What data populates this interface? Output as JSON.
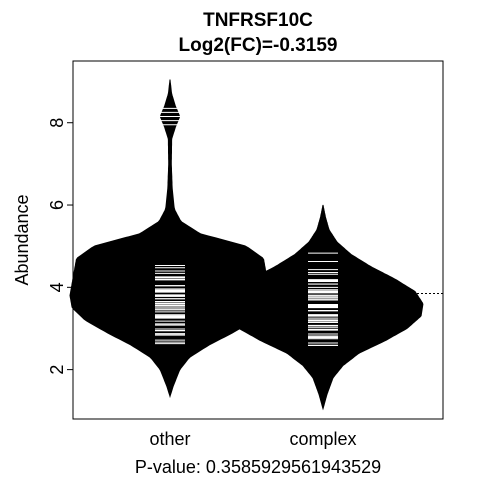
{
  "chart_data": {
    "type": "beanplot",
    "title": "TNFRSF10C",
    "subtitle": "Log2(FC)=-0.3159",
    "ylabel": "Abundance",
    "xlabel": "P-value: 0.3585929561943529",
    "categories": [
      "other",
      "complex"
    ],
    "ylim": [
      0.8,
      9.5
    ],
    "yticks": [
      2,
      4,
      6,
      8
    ],
    "overall_mean": 3.85,
    "grid": false,
    "legend": "none",
    "groups": [
      {
        "name": "other",
        "mean": 4.0,
        "range": [
          1.35,
          9.05
        ],
        "lines_range": [
          2.25,
          5.05
        ],
        "outliers": [
          7.95,
          8.05,
          8.15,
          8.25,
          8.35
        ],
        "density": [
          [
            1.35,
            0.0
          ],
          [
            1.6,
            0.03
          ],
          [
            2.0,
            0.09
          ],
          [
            2.3,
            0.18
          ],
          [
            2.6,
            0.36
          ],
          [
            2.9,
            0.58
          ],
          [
            3.2,
            0.78
          ],
          [
            3.5,
            0.9
          ],
          [
            3.8,
            0.92
          ],
          [
            4.1,
            0.9
          ],
          [
            4.4,
            0.88
          ],
          [
            4.7,
            0.86
          ],
          [
            5.0,
            0.7
          ],
          [
            5.3,
            0.28
          ],
          [
            5.6,
            0.1
          ],
          [
            5.9,
            0.04
          ],
          [
            6.4,
            0.02
          ],
          [
            7.0,
            0.012
          ],
          [
            7.6,
            0.015
          ],
          [
            7.9,
            0.05
          ],
          [
            8.15,
            0.09
          ],
          [
            8.4,
            0.05
          ],
          [
            8.7,
            0.015
          ],
          [
            9.05,
            0.0
          ]
        ]
      },
      {
        "name": "complex",
        "mean": 3.62,
        "range": [
          1.05,
          6.0
        ],
        "lines_range": [
          1.85,
          5.2
        ],
        "outliers": [],
        "density": [
          [
            1.05,
            0.0
          ],
          [
            1.4,
            0.04
          ],
          [
            1.8,
            0.1
          ],
          [
            2.1,
            0.2
          ],
          [
            2.4,
            0.36
          ],
          [
            2.7,
            0.62
          ],
          [
            3.0,
            0.84
          ],
          [
            3.3,
            0.98
          ],
          [
            3.6,
            1.0
          ],
          [
            3.9,
            0.92
          ],
          [
            4.2,
            0.72
          ],
          [
            4.5,
            0.48
          ],
          [
            4.8,
            0.28
          ],
          [
            5.1,
            0.14
          ],
          [
            5.4,
            0.06
          ],
          [
            5.7,
            0.025
          ],
          [
            6.0,
            0.0
          ]
        ]
      }
    ]
  }
}
